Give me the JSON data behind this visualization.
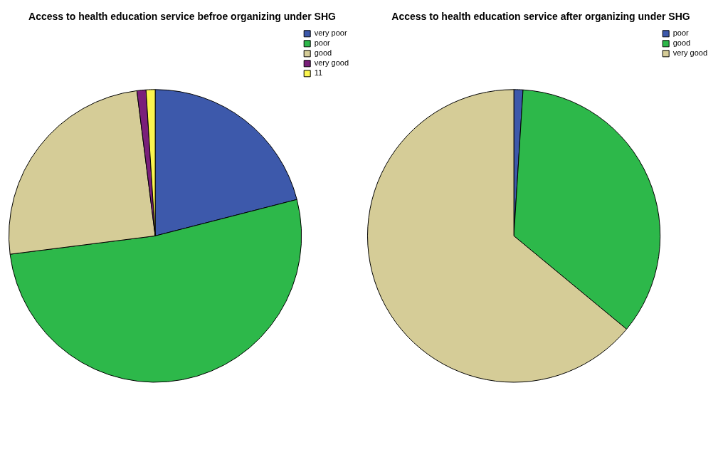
{
  "chart_data": [
    {
      "type": "pie",
      "title": "Access to health education service befroe organizing under SHG",
      "categories": [
        "very poor",
        "poor",
        "good",
        "very good",
        "11"
      ],
      "values": [
        21,
        52,
        25,
        1,
        1
      ],
      "colors": [
        "#3d59ab",
        "#2db84a",
        "#d5cc97",
        "#7a1f7a",
        "#fbf54f"
      ],
      "legend": "top right"
    },
    {
      "type": "pie",
      "title": "Access to health education service after organizing under SHG",
      "categories": [
        "poor",
        "good",
        "very good"
      ],
      "values": [
        1,
        35,
        64
      ],
      "colors": [
        "#3d59ab",
        "#2db84a",
        "#d5cc97"
      ],
      "legend": "top right"
    }
  ]
}
